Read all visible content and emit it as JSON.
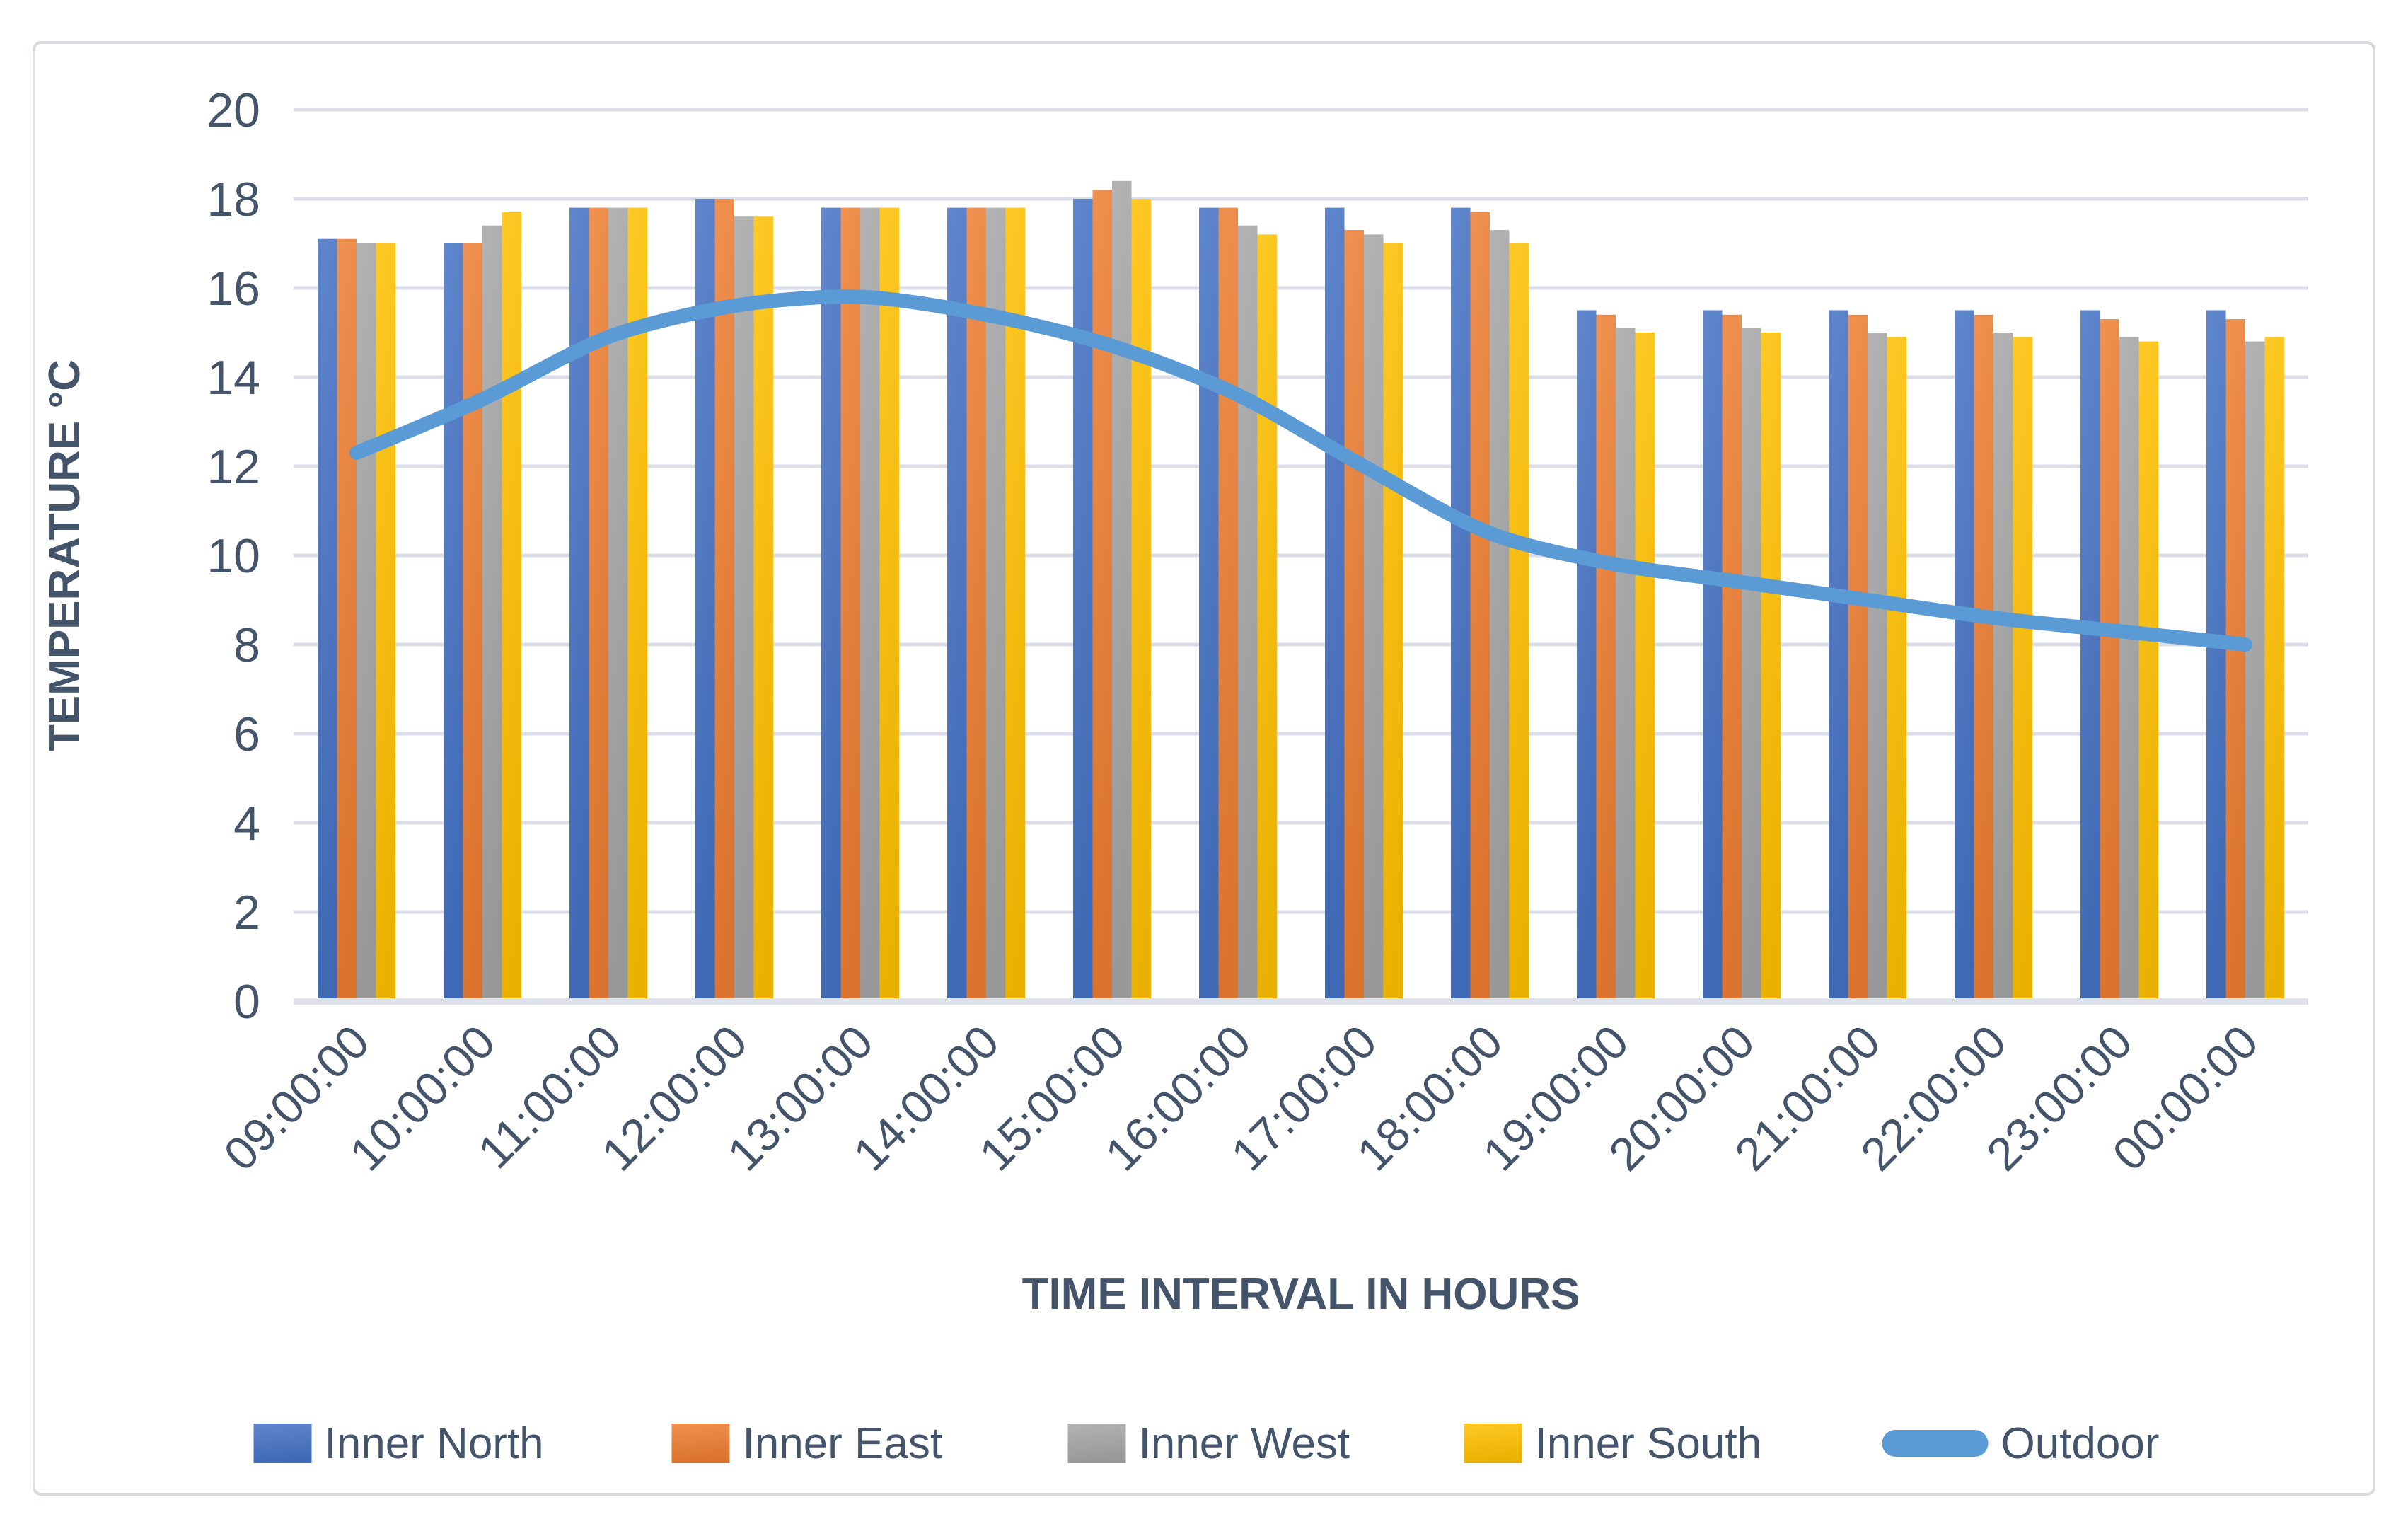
{
  "chart_data": {
    "type": "combo",
    "title": "",
    "xlabel": "TIME INTERVAL IN HOURS",
    "ylabel": "TEMPERATURE °C",
    "ylim": [
      0,
      20
    ],
    "ytick_step": 2,
    "grid": true,
    "legend_position": "bottom",
    "categories": [
      "09:00:00",
      "10:00:00",
      "11:00:00",
      "12:00:00",
      "13:00:00",
      "14:00:00",
      "15:00:00",
      "16:00:00",
      "17:00:00",
      "18:00:00",
      "19:00:00",
      "20:00:00",
      "21:00:00",
      "22:00:00",
      "23:00:00",
      "00:00:00"
    ],
    "series": [
      {
        "name": "Inner North",
        "type": "bar",
        "color": "#4472C4",
        "values": [
          17.1,
          17.0,
          17.8,
          18.0,
          17.8,
          17.8,
          18.0,
          17.8,
          17.8,
          17.8,
          15.5,
          15.5,
          15.5,
          15.5,
          15.5,
          15.5
        ]
      },
      {
        "name": "Inner East",
        "type": "bar",
        "color": "#ED7D31",
        "values": [
          17.1,
          17.0,
          17.8,
          18.0,
          17.8,
          17.8,
          18.2,
          17.8,
          17.3,
          17.7,
          15.4,
          15.4,
          15.4,
          15.4,
          15.3,
          15.3
        ]
      },
      {
        "name": "Inner West",
        "type": "bar",
        "color": "#A5A5A5",
        "values": [
          17.0,
          17.4,
          17.8,
          17.6,
          17.8,
          17.8,
          18.4,
          17.4,
          17.2,
          17.3,
          15.1,
          15.1,
          15.0,
          15.0,
          14.9,
          14.8
        ]
      },
      {
        "name": "Inner South",
        "type": "bar",
        "color": "#FFC000",
        "values": [
          17.0,
          17.7,
          17.8,
          17.6,
          17.8,
          17.8,
          18.0,
          17.2,
          17.0,
          17.0,
          15.0,
          15.0,
          14.9,
          14.9,
          14.8,
          14.9
        ]
      },
      {
        "name": "Outdoor",
        "type": "line",
        "color": "#5B9BD5",
        "values": [
          12.3,
          13.5,
          14.9,
          15.6,
          15.8,
          15.4,
          14.7,
          13.6,
          12.0,
          10.5,
          9.8,
          9.4,
          9.0,
          8.6,
          8.3,
          8.0
        ]
      }
    ]
  },
  "colors": {
    "text": "#44546A",
    "gridline": "#D9DEE8",
    "axis_line": "#DEE3EB",
    "frame_border": "#D7DBE2",
    "background": "#FFFFFF"
  }
}
